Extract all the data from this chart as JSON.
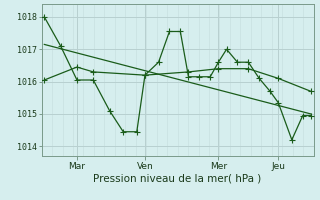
{
  "xlabel": "Pression niveau de la mer( hPa )",
  "bg_color": "#d6eeee",
  "grid_color_major": "#b8d0d0",
  "grid_color_minor": "#c8e0e0",
  "line_color": "#1a5c1a",
  "axis_color": "#7a9a8a",
  "text_color": "#1a3a1a",
  "ylim": [
    1013.7,
    1018.4
  ],
  "xlim": [
    0,
    1
  ],
  "ytick_values": [
    1014,
    1015,
    1016,
    1017,
    1018
  ],
  "ytick_labels": [
    "1014",
    "1015",
    "1016",
    "1017",
    "1018"
  ],
  "xtick_positions": [
    0.13,
    0.38,
    0.65,
    0.87
  ],
  "xtick_labels": [
    "Mar",
    "Ven",
    "Mer",
    "Jeu"
  ],
  "series_main_x": [
    0.01,
    0.07,
    0.13,
    0.19,
    0.25,
    0.3,
    0.35,
    0.38,
    0.43,
    0.47,
    0.51,
    0.54,
    0.58,
    0.62,
    0.65,
    0.68,
    0.72,
    0.76,
    0.8,
    0.84,
    0.87,
    0.92,
    0.96,
    0.99
  ],
  "series_main_y": [
    1018.0,
    1017.1,
    1016.05,
    1016.05,
    1015.1,
    1014.45,
    1014.45,
    1016.2,
    1016.6,
    1017.55,
    1017.55,
    1016.15,
    1016.15,
    1016.15,
    1016.6,
    1017.0,
    1016.6,
    1016.6,
    1016.1,
    1015.7,
    1015.35,
    1014.2,
    1014.95,
    1014.95
  ],
  "series_smooth_x": [
    0.01,
    0.13,
    0.19,
    0.38,
    0.54,
    0.65,
    0.76,
    0.87,
    0.99
  ],
  "series_smooth_y": [
    1016.05,
    1016.45,
    1016.3,
    1016.2,
    1016.3,
    1016.4,
    1016.4,
    1016.1,
    1015.7
  ],
  "trend_x": [
    0.01,
    0.99
  ],
  "trend_y": [
    1017.15,
    1015.0
  ],
  "line_width": 0.9,
  "marker_size": 4.0
}
